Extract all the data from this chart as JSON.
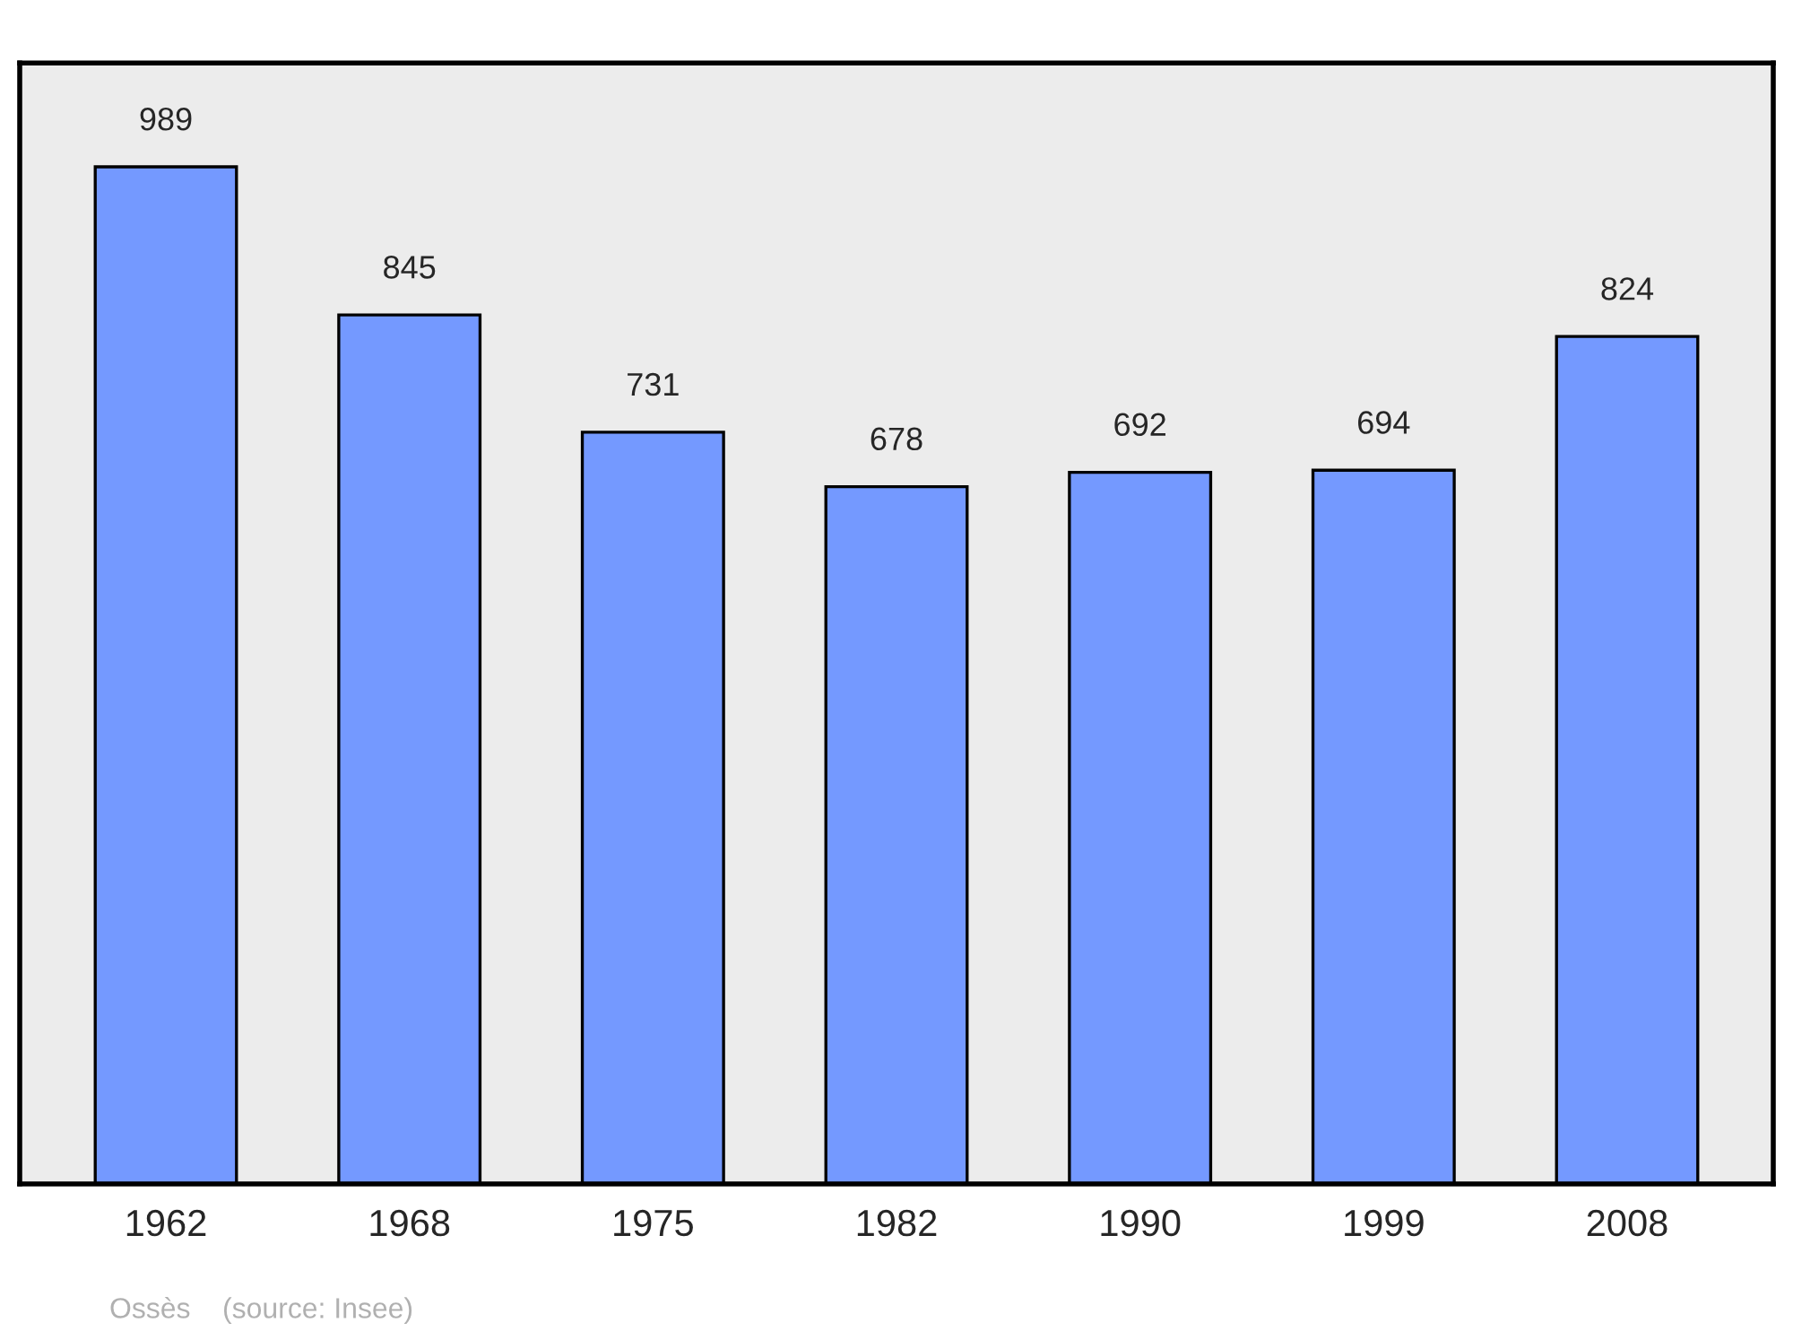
{
  "chart_data": {
    "type": "bar",
    "categories": [
      "1962",
      "1968",
      "1975",
      "1982",
      "1990",
      "1999",
      "2008"
    ],
    "values": [
      989,
      845,
      731,
      678,
      692,
      694,
      824
    ],
    "color": "#7499ff",
    "ylim": [
      0,
      1090
    ],
    "data_labels": true,
    "tick_labels": "x",
    "grid": false,
    "legend": false,
    "annotations": [
      "Ossès    (source: Insee)"
    ]
  }
}
